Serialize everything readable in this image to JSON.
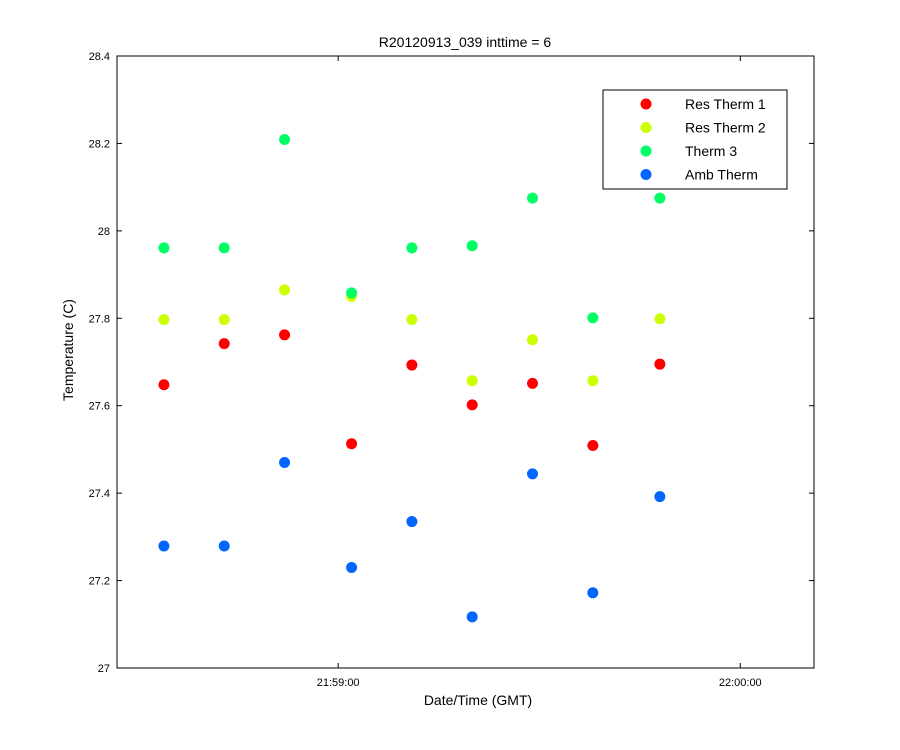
{
  "chart_data": {
    "type": "scatter",
    "title": "R20120913_039 inttime = 6",
    "xlabel": "Date/Time (GMT)",
    "ylabel": "Temperature (C)",
    "ylim": [
      27.0,
      28.4
    ],
    "yticks": [
      "27",
      "27.2",
      "27.4",
      "27.6",
      "27.8",
      "28",
      "28.2",
      "28.4"
    ],
    "xlim": [
      "21:58:27",
      "22:00:11"
    ],
    "xticks": [
      {
        "value": "21:59:00",
        "label": "21:59:00"
      },
      {
        "value": "22:00:00",
        "label": "22:00:00"
      }
    ],
    "x": [
      "21:58:34",
      "21:58:43",
      "21:58:52",
      "21:59:02",
      "21:59:11",
      "21:59:20",
      "21:59:29",
      "21:59:38",
      "21:59:48"
    ],
    "legend_position": "top-right",
    "grid": false,
    "series": [
      {
        "name": "Res Therm 1",
        "color": "#ff0000",
        "values": [
          27.648,
          27.742,
          27.762,
          27.513,
          27.693,
          27.602,
          27.651,
          27.509,
          27.695
        ]
      },
      {
        "name": "Res Therm 2",
        "color": "#ccff00",
        "values": [
          27.797,
          27.797,
          27.865,
          27.85,
          27.797,
          27.657,
          27.751,
          27.657,
          27.799
        ]
      },
      {
        "name": "Therm 3",
        "color": "#00ff66",
        "values": [
          27.961,
          27.961,
          28.209,
          27.858,
          27.961,
          27.966,
          28.075,
          27.801,
          28.075
        ]
      },
      {
        "name": "Amb Therm",
        "color": "#0066ff",
        "values": [
          27.279,
          27.279,
          27.47,
          27.23,
          27.335,
          27.117,
          27.444,
          27.172,
          27.392
        ]
      }
    ]
  }
}
